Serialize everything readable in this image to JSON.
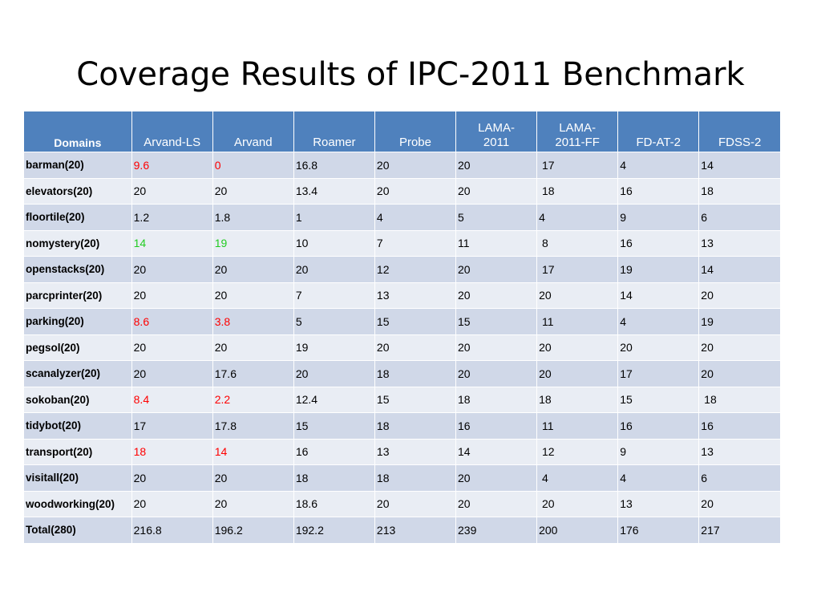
{
  "slide": {
    "title": "Coverage Results of IPC-2011 Benchmark"
  },
  "colors": {
    "header_bg": "#4f81bd",
    "row_odd_bg": "#d0d8e8",
    "row_even_bg": "#e9edf4",
    "highlight_red": "#ff0000",
    "highlight_green": "#22cc22"
  },
  "table": {
    "headers": [
      "Domains",
      "Arvand-LS",
      "Arvand",
      "Roamer",
      "Probe",
      "LAMA-\n2011",
      "LAMA-\n2011-FF",
      "FD-AT-2",
      "FDSS-2"
    ],
    "rows": [
      {
        "domain": "barman(20)",
        "values": [
          "9.6",
          "0",
          "16.8",
          "20",
          "20",
          " 17",
          "4",
          "14"
        ],
        "highlight": "red"
      },
      {
        "domain": "elevators(20)",
        "values": [
          "20",
          "20",
          "13.4",
          "20",
          "20",
          " 18",
          "16",
          "18"
        ],
        "highlight": ""
      },
      {
        "domain": "floortile(20)",
        "values": [
          "1.2",
          "1.8",
          "1",
          "4",
          "5",
          "4",
          "9",
          "6"
        ],
        "highlight": ""
      },
      {
        "domain": "nomystery(20)",
        "values": [
          "14",
          "19",
          "10",
          "7",
          "11",
          " 8",
          "16",
          "13"
        ],
        "highlight": "green"
      },
      {
        "domain": "openstacks(20)",
        "values": [
          "20",
          "20",
          "20",
          "12",
          "20",
          " 17",
          "19",
          "14"
        ],
        "highlight": ""
      },
      {
        "domain": "parcprinter(20)",
        "values": [
          "20",
          "20",
          "7",
          "13",
          "20",
          "20",
          "14",
          "20"
        ],
        "highlight": ""
      },
      {
        "domain": "parking(20)",
        "values": [
          "8.6",
          "3.8",
          "5",
          "15",
          "15",
          " 11",
          "4",
          "19"
        ],
        "highlight": "red"
      },
      {
        "domain": "pegsol(20)",
        "values": [
          "20",
          "20",
          "19",
          "20",
          "20",
          "20",
          "20",
          "20"
        ],
        "highlight": ""
      },
      {
        "domain": "scanalyzer(20)",
        "values": [
          "20",
          "17.6",
          "20",
          "18",
          "20",
          "20",
          "17",
          "20"
        ],
        "highlight": ""
      },
      {
        "domain": "sokoban(20)",
        "values": [
          "8.4",
          "2.2",
          "12.4",
          "15",
          "18",
          "18",
          "15",
          " 18"
        ],
        "highlight": "red"
      },
      {
        "domain": "tidybot(20)",
        "values": [
          "17",
          "17.8",
          "15",
          "18",
          "16",
          " 11",
          "16",
          "16"
        ],
        "highlight": ""
      },
      {
        "domain": "transport(20)",
        "values": [
          "18",
          "14",
          "16",
          "13",
          "14",
          " 12",
          "9",
          "13"
        ],
        "highlight": "red"
      },
      {
        "domain": "visitall(20)",
        "values": [
          "20",
          "20",
          "18",
          "18",
          "20",
          " 4",
          "4",
          "6"
        ],
        "highlight": ""
      },
      {
        "domain": "woodworking(20)",
        "values": [
          "20",
          "20",
          "18.6",
          "20",
          "20",
          " 20",
          "13",
          "20"
        ],
        "highlight": ""
      },
      {
        "domain": "Total(280)",
        "values": [
          "216.8",
          "196.2",
          "192.2",
          "213",
          "239",
          "200",
          "176",
          "217"
        ],
        "highlight": ""
      }
    ]
  }
}
